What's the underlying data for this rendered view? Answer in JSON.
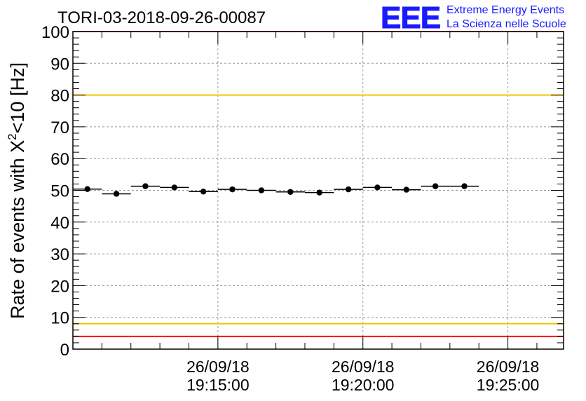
{
  "chart_data": {
    "type": "scatter",
    "title": "TORI-03-2018-09-26-00087",
    "ylabel_main": "Rate of events with X",
    "ylabel_sup": "2",
    "ylabel_tail": "<10 [Hz]",
    "ylim": [
      0,
      100
    ],
    "yticks": [
      "0",
      "10",
      "20",
      "30",
      "40",
      "50",
      "60",
      "70",
      "80",
      "90",
      "100"
    ],
    "xticks": [
      {
        "date": "26/09/18",
        "time": "19:15:00",
        "minute": 5
      },
      {
        "date": "26/09/18",
        "time": "19:20:00",
        "minute": 10
      },
      {
        "date": "26/09/18",
        "time": "19:25:00",
        "minute": 15
      }
    ],
    "x_range_minutes": [
      0,
      16.92
    ],
    "bin_width_minutes": 1.0,
    "points": [
      {
        "x": 0.5,
        "y": 50.4
      },
      {
        "x": 1.5,
        "y": 48.9
      },
      {
        "x": 2.5,
        "y": 51.3
      },
      {
        "x": 3.5,
        "y": 50.9
      },
      {
        "x": 4.5,
        "y": 49.6
      },
      {
        "x": 5.5,
        "y": 50.3
      },
      {
        "x": 6.5,
        "y": 50.0
      },
      {
        "x": 7.5,
        "y": 49.5
      },
      {
        "x": 8.5,
        "y": 49.3
      },
      {
        "x": 9.5,
        "y": 50.3
      },
      {
        "x": 10.5,
        "y": 50.9
      },
      {
        "x": 11.5,
        "y": 50.2
      },
      {
        "x": 12.5,
        "y": 51.3
      },
      {
        "x": 13.5,
        "y": 51.3
      }
    ],
    "reference_lines": [
      {
        "name": "upper-red-limit",
        "y": 100,
        "color": "#ff0000"
      },
      {
        "name": "upper-yellow-limit",
        "y": 80,
        "color": "#f5c400"
      },
      {
        "name": "lower-yellow-limit",
        "y": 8,
        "color": "#f5c400"
      },
      {
        "name": "lower-red-limit",
        "y": 4,
        "color": "#ff0000"
      }
    ],
    "grid": true
  },
  "logo": {
    "mark": "EEE",
    "line1": "Extreme Energy Events",
    "line2": "La Scienza nelle Scuole",
    "color": "#1a1aff"
  },
  "colors": {
    "marker": "#000000",
    "grid": "#9a9a9a"
  }
}
